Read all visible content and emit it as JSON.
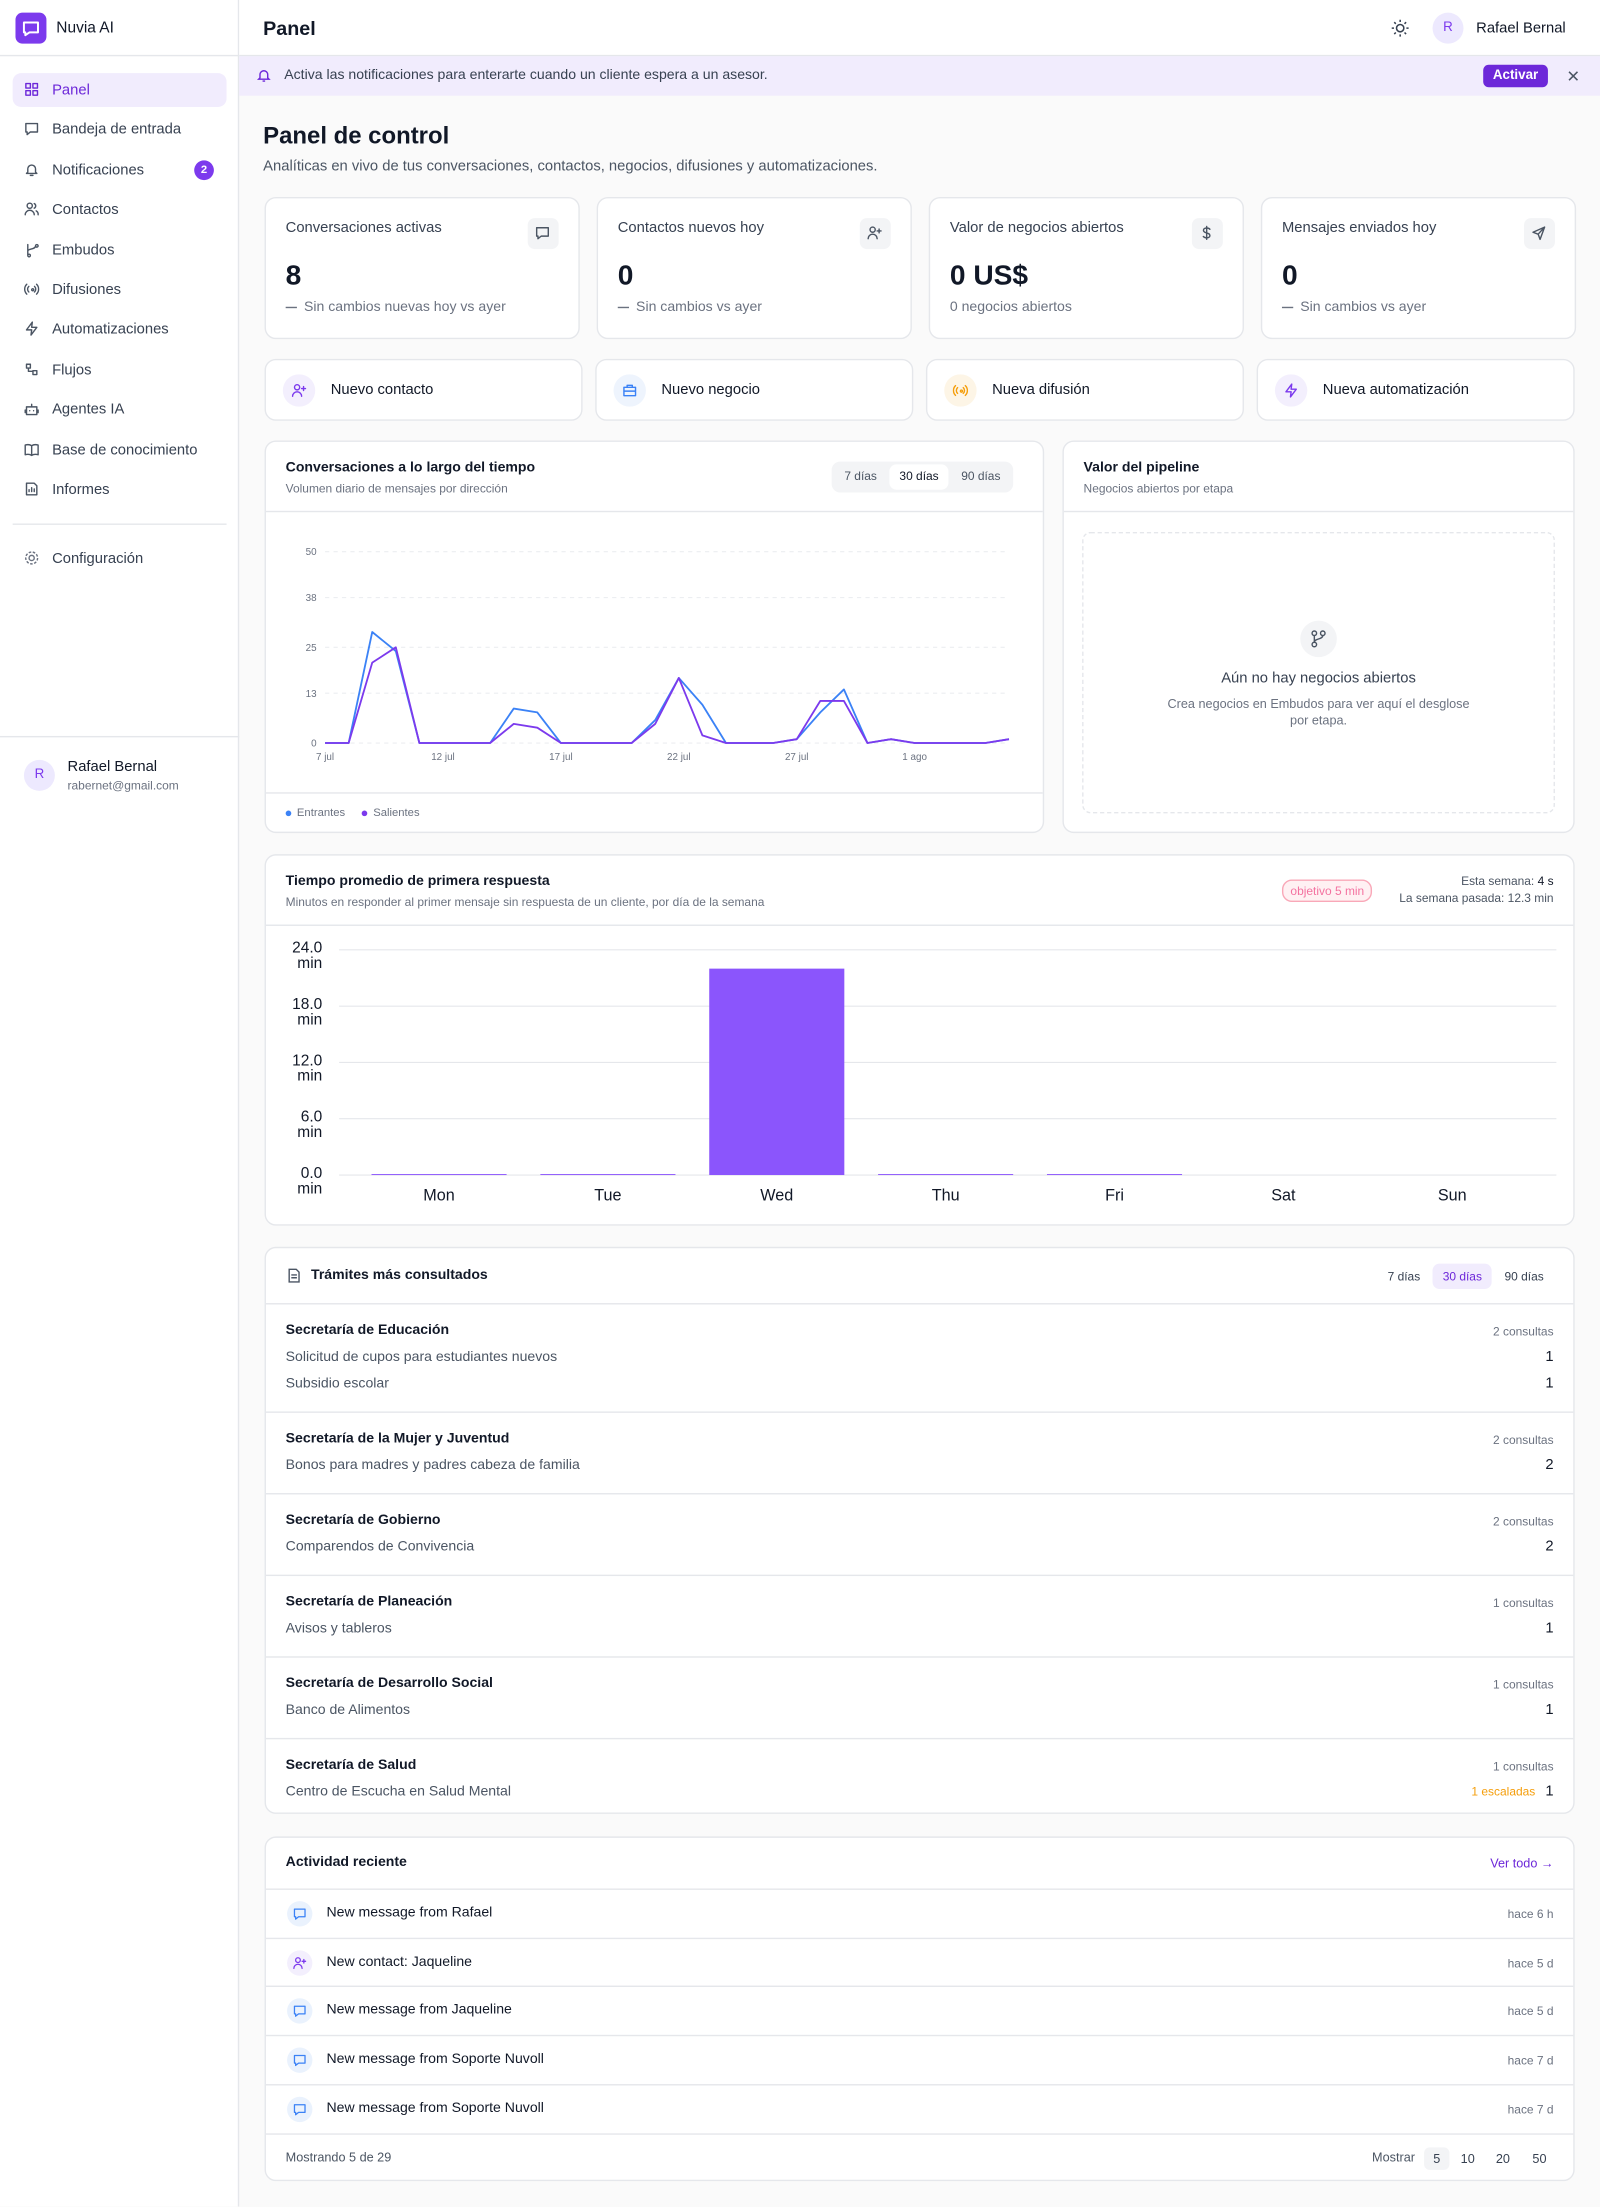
{
  "sidebar": {
    "brand": "Nuvia AI",
    "nav": [
      {
        "label": "Panel"
      },
      {
        "label": "Bandeja de entrada"
      },
      {
        "label": "Notificaciones",
        "badge": "2"
      },
      {
        "label": "Contactos"
      },
      {
        "label": "Embudos"
      },
      {
        "label": "Difusiones"
      },
      {
        "label": "Automatizaciones"
      },
      {
        "label": "Flujos"
      },
      {
        "label": "Agentes IA"
      },
      {
        "label": "Base de conocimiento"
      },
      {
        "label": "Informes"
      }
    ],
    "active_nav": 0,
    "settings": "Configuración",
    "user": {
      "initial": "R",
      "name": "Rafael Bernal",
      "email": "rabernet@gmail.com"
    }
  },
  "header": {
    "title": "Panel",
    "initial": "R",
    "user": "Rafael Bernal"
  },
  "banner": {
    "text": "Activa las notificaciones para enterarte cuando un cliente espera a un asesor.",
    "button": "Activar"
  },
  "page": {
    "title": "Panel de control",
    "subtitle": "Analíticas en vivo de tus conversaciones, contactos, negocios, difusiones y automatizaciones."
  },
  "stats": [
    {
      "label": "Conversaciones activas",
      "value": "8",
      "note": "Sin cambios nuevas hoy vs ayer",
      "trend": "flat"
    },
    {
      "label": "Contactos nuevos hoy",
      "value": "0",
      "note": "Sin cambios vs ayer",
      "trend": "flat"
    },
    {
      "label": "Valor de negocios abiertos",
      "value": "0 US$",
      "note": "0 negocios abiertos"
    },
    {
      "label": "Mensajes enviados hoy",
      "value": "0",
      "note": "Sin cambios vs ayer",
      "trend": "flat"
    }
  ],
  "actions": [
    "Nuevo contacto",
    "Nuevo negocio",
    "Nueva difusión",
    "Nueva automatización"
  ],
  "conversations_chart": {
    "title": "Conversaciones a lo largo del tiempo",
    "subtitle": "Volumen diario de mensajes por dirección",
    "ranges": [
      "7 días",
      "30 días",
      "90 días"
    ],
    "selected_range": 1,
    "chart_data": {
      "type": "line",
      "categories": [
        "7 jul",
        null,
        null,
        null,
        null,
        "12 jul",
        null,
        null,
        null,
        null,
        "17 jul",
        null,
        null,
        null,
        null,
        "22 jul",
        null,
        null,
        null,
        null,
        "27 jul",
        null,
        null,
        null,
        null,
        "1 ago",
        null,
        null,
        null,
        null
      ],
      "series": [
        {
          "name": "Entrantes",
          "color": "#3b82f6",
          "values": [
            0,
            0,
            29,
            24,
            0,
            0,
            0,
            0,
            9,
            8,
            0,
            0,
            0,
            0,
            6,
            17,
            10,
            0,
            0,
            0,
            1,
            8,
            14,
            0,
            1,
            0,
            0,
            0,
            0,
            1
          ]
        },
        {
          "name": "Salientes",
          "color": "#7c3aed",
          "values": [
            0,
            0,
            21,
            25,
            0,
            0,
            0,
            0,
            5,
            4,
            0,
            0,
            0,
            0,
            5,
            17,
            2,
            0,
            0,
            0,
            1,
            11,
            11,
            0,
            1,
            0,
            0,
            0,
            0,
            1
          ]
        }
      ],
      "ylim": [
        0,
        50
      ],
      "yticks": [
        0,
        13,
        25,
        38,
        50
      ],
      "grid": true
    }
  },
  "pipeline": {
    "title": "Valor del pipeline",
    "subtitle": "Negocios abiertos por etapa",
    "empty_title": "Aún no hay negocios abiertos",
    "empty_text": "Crea negocios en Embudos para ver aquí el desglose por etapa."
  },
  "response_chart": {
    "title": "Tiempo promedio de primera respuesta",
    "subtitle": "Minutos en responder al primer mensaje sin respuesta de un cliente, por día de la semana",
    "badge": "objetivo 5 min",
    "this_week_label": "Esta semana:",
    "this_week": "4 s",
    "last_week": "La semana pasada: 12.3 min",
    "chart_data": {
      "type": "bar",
      "categories": [
        "Mon",
        "Tue",
        "Wed",
        "Thu",
        "Fri",
        "Sat",
        "Sun"
      ],
      "values": [
        0.1,
        0.1,
        22,
        0.1,
        0.1,
        0,
        0
      ],
      "color": "#8b55fc",
      "ylim": [
        0,
        24
      ],
      "yticks": [
        {
          "value": 0,
          "label": "0.0 min"
        },
        {
          "value": 6,
          "label": "6.0 min"
        },
        {
          "value": 12,
          "label": "12.0 min"
        },
        {
          "value": 18,
          "label": "18.0 min"
        },
        {
          "value": 24,
          "label": "24.0 min"
        }
      ],
      "grid": true
    }
  },
  "procedures": {
    "title": "Trámites más consultados",
    "ranges": [
      "7 días",
      "30 días",
      "90 días"
    ],
    "selected_range": 1,
    "groups": [
      {
        "name": "Secretaría de Educación",
        "total": "2 consultas",
        "items": [
          {
            "label": "Solicitud de cupos para estudiantes nuevos",
            "count": 1
          },
          {
            "label": "Subsidio escolar",
            "count": 1
          }
        ]
      },
      {
        "name": "Secretaría de la Mujer y Juventud",
        "total": "2 consultas",
        "items": [
          {
            "label": "Bonos para madres y padres cabeza de familia",
            "count": 2
          }
        ]
      },
      {
        "name": "Secretaría de Gobierno",
        "total": "2 consultas",
        "items": [
          {
            "label": "Comparendos de Convivencia",
            "count": 2
          }
        ]
      },
      {
        "name": "Secretaría de Planeación",
        "total": "1 consultas",
        "items": [
          {
            "label": "Avisos y tableros",
            "count": 1
          }
        ]
      },
      {
        "name": "Secretaría de Desarrollo Social",
        "total": "1 consultas",
        "items": [
          {
            "label": "Banco de Alimentos",
            "count": 1
          }
        ]
      },
      {
        "name": "Secretaría de Salud",
        "total": "1 consultas",
        "items": [
          {
            "label": "Centro de Escucha en Salud Mental",
            "count": 1,
            "escalated": "1 escaladas"
          }
        ]
      }
    ]
  },
  "activity": {
    "title": "Actividad reciente",
    "link": "Ver todo →",
    "items": [
      {
        "text": "New message from Rafael",
        "time": "hace 6 h",
        "kind": "message"
      },
      {
        "text": "New contact: Jaqueline",
        "time": "hace 5 d",
        "kind": "contact"
      },
      {
        "text": "New message from Jaqueline",
        "time": "hace 5 d",
        "kind": "message"
      },
      {
        "text": "New message from Soporte Nuvoll",
        "time": "hace 7 d",
        "kind": "message"
      },
      {
        "text": "New message from Soporte Nuvoll",
        "time": "hace 7 d",
        "kind": "message"
      }
    ],
    "footer": "Mostrando 5 de 29",
    "show_label": "Mostrar",
    "page_sizes": [
      5,
      10,
      20,
      50
    ],
    "selected_size": 0
  }
}
